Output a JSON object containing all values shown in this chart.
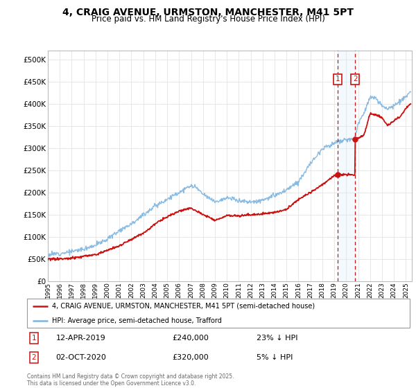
{
  "title": "4, CRAIG AVENUE, URMSTON, MANCHESTER, M41 5PT",
  "subtitle": "Price paid vs. HM Land Registry's House Price Index (HPI)",
  "legend_line1": "4, CRAIG AVENUE, URMSTON, MANCHESTER, M41 5PT (semi-detached house)",
  "legend_line2": "HPI: Average price, semi-detached house, Trafford",
  "annotation1_date": "12-APR-2019",
  "annotation1_price": "£240,000",
  "annotation1_hpi": "23% ↓ HPI",
  "annotation2_date": "02-OCT-2020",
  "annotation2_price": "£320,000",
  "annotation2_hpi": "5% ↓ HPI",
  "footer": "Contains HM Land Registry data © Crown copyright and database right 2025.\nThis data is licensed under the Open Government Licence v3.0.",
  "hpi_color": "#7cb4e0",
  "price_color": "#cc1111",
  "annotation_color": "#cc1111",
  "shade_color": "#d0e8f8",
  "ylim": [
    0,
    520000
  ],
  "yticks": [
    0,
    50000,
    100000,
    150000,
    200000,
    250000,
    300000,
    350000,
    400000,
    450000,
    500000
  ],
  "anno1_x": 2019.28,
  "anno2_x": 2020.75,
  "anno1_price": 240000,
  "anno2_price": 320000,
  "xmin": 1995,
  "xmax": 2025.5
}
